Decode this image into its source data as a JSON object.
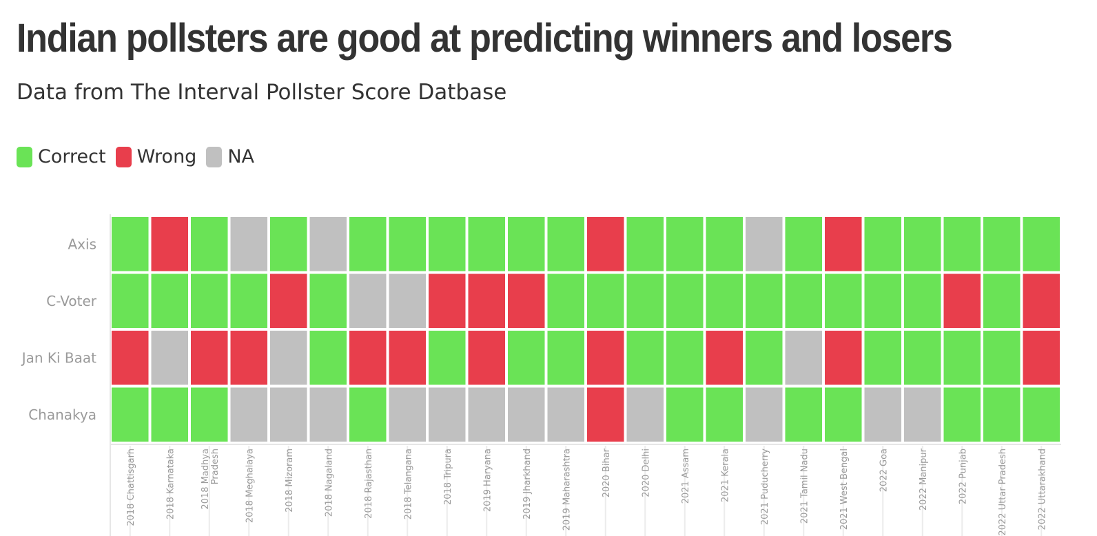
{
  "title": "Indian pollsters are good at predicting winners and losers",
  "subtitle": "Data from The Interval Pollster Score Datbase",
  "legend": [
    {
      "label": "Correct",
      "color": "#6ae356"
    },
    {
      "label": "Wrong",
      "color": "#e83e4c"
    },
    {
      "label": "NA",
      "color": "#c0c0c0"
    }
  ],
  "chart_data": {
    "type": "heatmap",
    "rows": [
      "Axis",
      "C-Voter",
      "Jan Ki Baat",
      "Chanakya"
    ],
    "columns": [
      [
        "2018 Chattisgarh"
      ],
      [
        "2018 Karnataka"
      ],
      [
        "2018 Madhya",
        "Pradesh"
      ],
      [
        "2018 Meghalaya"
      ],
      [
        "2018 Mizoram"
      ],
      [
        "2018 Nagaland"
      ],
      [
        "2018 Rajasthan"
      ],
      [
        "2018 Telangana"
      ],
      [
        "2018 Tripura"
      ],
      [
        "2019 Haryana"
      ],
      [
        "2019 Jharkhand"
      ],
      [
        "2019 Maharashtra"
      ],
      [
        "2020 Bihar"
      ],
      [
        "2020 Delhi"
      ],
      [
        "2021 Assam"
      ],
      [
        "2021 Kerala"
      ],
      [
        "2021 Puducherry"
      ],
      [
        "2021 Tamil Nadu"
      ],
      [
        "2021 West Bengal"
      ],
      [
        "2022 Goa"
      ],
      [
        "2022 Manipur"
      ],
      [
        "2022 Punjab"
      ],
      [
        "2022 Uttar Pradesh"
      ],
      [
        "2022 Uttarakhand"
      ]
    ],
    "categories": [
      "Correct",
      "Wrong",
      "NA"
    ],
    "values": [
      [
        "Correct",
        "Wrong",
        "Correct",
        "NA",
        "Correct",
        "NA",
        "Correct",
        "Correct",
        "Correct",
        "Correct",
        "Correct",
        "Correct",
        "Wrong",
        "Correct",
        "Correct",
        "Correct",
        "NA",
        "Correct",
        "Wrong",
        "Correct",
        "Correct",
        "Correct",
        "Correct",
        "Correct"
      ],
      [
        "Correct",
        "Correct",
        "Correct",
        "Correct",
        "Wrong",
        "Correct",
        "NA",
        "NA",
        "Wrong",
        "Wrong",
        "Wrong",
        "Correct",
        "Correct",
        "Correct",
        "Correct",
        "Correct",
        "Correct",
        "Correct",
        "Correct",
        "Correct",
        "Correct",
        "Wrong",
        "Correct",
        "Wrong"
      ],
      [
        "Wrong",
        "NA",
        "Wrong",
        "Wrong",
        "NA",
        "Correct",
        "Wrong",
        "Wrong",
        "Correct",
        "Wrong",
        "Correct",
        "Correct",
        "Wrong",
        "Correct",
        "Correct",
        "Wrong",
        "Correct",
        "NA",
        "Wrong",
        "Correct",
        "Correct",
        "Correct",
        "Correct",
        "Wrong"
      ],
      [
        "Correct",
        "Correct",
        "Correct",
        "NA",
        "NA",
        "NA",
        "Correct",
        "NA",
        "NA",
        "NA",
        "NA",
        "NA",
        "Wrong",
        "NA",
        "Correct",
        "Correct",
        "NA",
        "Correct",
        "Correct",
        "NA",
        "NA",
        "Correct",
        "Correct",
        "Correct"
      ]
    ],
    "colors": {
      "Correct": "#6ae356",
      "Wrong": "#e83e4c",
      "NA": "#c0c0c0"
    },
    "legend_position": "top-left"
  }
}
